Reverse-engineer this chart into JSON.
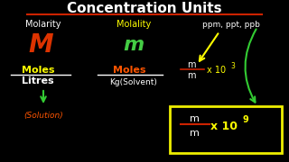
{
  "bg_color": "#000000",
  "title": "Concentration Units",
  "title_color": "#ffffff",
  "title_underline_color": "#cc2200",
  "molarity_label": "Molarity",
  "molality_label": "Molality",
  "ppm_label": "ppm, ppt, ppb",
  "M_color": "#dd3300",
  "m_color": "#44cc44",
  "yellow": "#ffff00",
  "white": "#ffffff",
  "orange_red": "#ff5500",
  "green_arrow": "#33cc33",
  "box_color": "#eeee00",
  "fraction_line_color": "#cc2200",
  "solution_color": "#ff5500"
}
